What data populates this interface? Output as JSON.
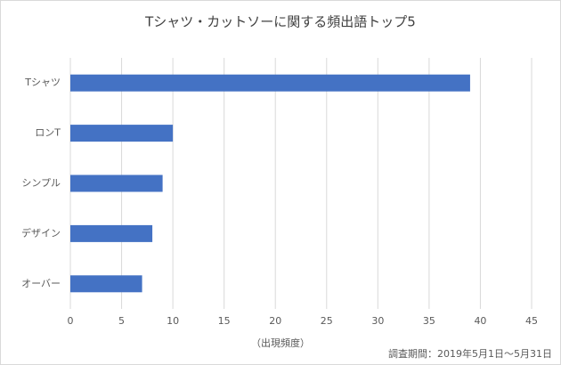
{
  "chart_data": {
    "type": "hbar",
    "title": "Tシャツ・カットソーに関する頻出語トップ5",
    "categories": [
      "Tシャツ",
      "ロンT",
      "シンプル",
      "デザイン",
      "オーバー"
    ],
    "values": [
      39,
      10,
      9,
      8,
      7
    ],
    "color": "#4472c4",
    "xlim": [
      0,
      45
    ],
    "xticks": [
      0,
      5,
      10,
      15,
      20,
      25,
      30,
      35,
      40,
      45
    ],
    "xlabel": "（出現頻度）",
    "annotation": "調査期間：2019年5月1日〜5月31日",
    "grid": true
  }
}
